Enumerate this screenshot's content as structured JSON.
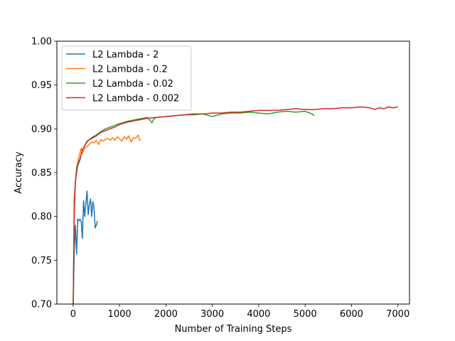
{
  "chart_data": {
    "type": "line",
    "title": "",
    "xlabel": "Number of Training Steps",
    "ylabel": "Accuracy",
    "xlim": [
      -350,
      7250
    ],
    "ylim": [
      0.7,
      1.0
    ],
    "xticks": [
      0,
      1000,
      2000,
      3000,
      4000,
      5000,
      6000,
      7000
    ],
    "yticks": [
      0.7,
      0.75,
      0.8,
      0.85,
      0.9,
      0.95,
      1.0
    ],
    "xtick_labels": [
      "0",
      "1000",
      "2000",
      "3000",
      "4000",
      "5000",
      "6000",
      "7000"
    ],
    "ytick_labels": [
      "0.70",
      "0.75",
      "0.80",
      "0.85",
      "0.90",
      "0.95",
      "1.00"
    ],
    "grid": false,
    "legend_position": "upper-left",
    "series": [
      {
        "name": "L2 Lambda - 2",
        "color": "#1f77b4",
        "x": [
          0,
          25,
          50,
          75,
          100,
          125,
          150,
          175,
          200,
          225,
          250,
          275,
          300,
          325,
          350,
          375,
          400,
          425,
          450,
          475,
          500,
          525
        ],
        "y": [
          0.69,
          0.762,
          0.79,
          0.757,
          0.797,
          0.795,
          0.797,
          0.794,
          0.775,
          0.818,
          0.8,
          0.815,
          0.829,
          0.802,
          0.814,
          0.82,
          0.8,
          0.817,
          0.81,
          0.787,
          0.79,
          0.795
        ]
      },
      {
        "name": "L2 Lambda - 0.2",
        "color": "#ff7f0e",
        "x": [
          0,
          25,
          50,
          75,
          100,
          125,
          150,
          175,
          200,
          250,
          300,
          350,
          400,
          450,
          500,
          550,
          600,
          650,
          700,
          750,
          800,
          850,
          900,
          950,
          1000,
          1050,
          1100,
          1150,
          1200,
          1250,
          1300,
          1350,
          1400,
          1425,
          1450
        ],
        "y": [
          0.69,
          0.8,
          0.84,
          0.855,
          0.862,
          0.868,
          0.873,
          0.878,
          0.872,
          0.878,
          0.88,
          0.882,
          0.885,
          0.884,
          0.887,
          0.882,
          0.888,
          0.886,
          0.888,
          0.889,
          0.887,
          0.89,
          0.887,
          0.891,
          0.889,
          0.886,
          0.891,
          0.888,
          0.892,
          0.885,
          0.89,
          0.889,
          0.893,
          0.889,
          0.886
        ]
      },
      {
        "name": "L2 Lambda - 0.02",
        "color": "#2ca02c",
        "x": [
          0,
          25,
          50,
          75,
          100,
          150,
          200,
          300,
          400,
          500,
          600,
          700,
          800,
          900,
          1000,
          1200,
          1400,
          1600,
          1700,
          1750,
          1800,
          2000,
          2200,
          2400,
          2600,
          2800,
          3000,
          3200,
          3400,
          3600,
          3800,
          4000,
          4200,
          4400,
          4600,
          4800,
          5000,
          5100,
          5150,
          5200
        ],
        "y": [
          0.69,
          0.81,
          0.84,
          0.855,
          0.86,
          0.866,
          0.876,
          0.885,
          0.89,
          0.893,
          0.897,
          0.9,
          0.902,
          0.904,
          0.906,
          0.909,
          0.911,
          0.913,
          0.907,
          0.912,
          0.913,
          0.914,
          0.915,
          0.916,
          0.916,
          0.917,
          0.914,
          0.917,
          0.918,
          0.918,
          0.919,
          0.918,
          0.917,
          0.919,
          0.92,
          0.919,
          0.92,
          0.918,
          0.917,
          0.915
        ]
      },
      {
        "name": "L2 Lambda - 0.002",
        "color": "#d62728",
        "x": [
          0,
          25,
          50,
          75,
          100,
          150,
          200,
          300,
          400,
          500,
          600,
          700,
          800,
          900,
          1000,
          1200,
          1400,
          1600,
          1800,
          2000,
          2200,
          2400,
          2600,
          2800,
          3000,
          3200,
          3400,
          3600,
          3800,
          4000,
          4200,
          4400,
          4600,
          4800,
          5000,
          5200,
          5400,
          5600,
          5800,
          6000,
          6200,
          6400,
          6500,
          6600,
          6700,
          6800,
          6900,
          7000
        ],
        "y": [
          0.69,
          0.82,
          0.84,
          0.85,
          0.858,
          0.865,
          0.876,
          0.886,
          0.889,
          0.892,
          0.896,
          0.898,
          0.9,
          0.902,
          0.905,
          0.908,
          0.91,
          0.912,
          0.913,
          0.914,
          0.915,
          0.916,
          0.917,
          0.917,
          0.918,
          0.918,
          0.919,
          0.919,
          0.92,
          0.921,
          0.921,
          0.921,
          0.922,
          0.923,
          0.922,
          0.922,
          0.923,
          0.923,
          0.924,
          0.924,
          0.925,
          0.924,
          0.922,
          0.924,
          0.923,
          0.925,
          0.924,
          0.925
        ]
      }
    ]
  }
}
